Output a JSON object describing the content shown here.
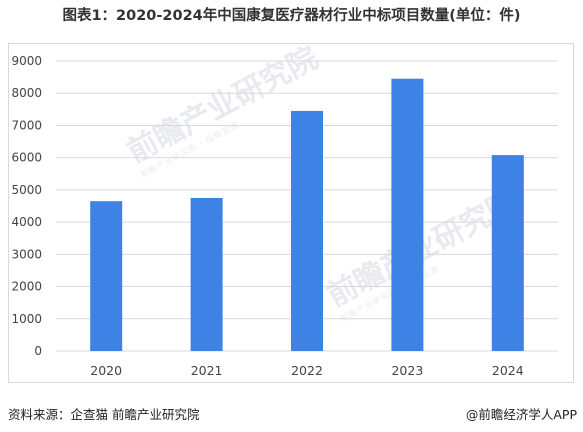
{
  "title": "图表1：2020-2024年中国康复医疗器材行业中标项目数量(单位：件)",
  "footer": {
    "source": "资料来源：企查猫 前瞻产业研究院",
    "brand": "@前瞻经济学人APP"
  },
  "watermark": {
    "text": "前瞻产业研究院",
    "subtext": "前瞻产业研究院 · 战略咨询"
  },
  "colors": {
    "bar": "#3e82e6",
    "grid": "#d9d9d9",
    "tick_text": "#444444"
  },
  "chart_data": {
    "type": "bar",
    "title": "图表1：2020-2024年中国康复医疗器材行业中标项目数量(单位：件)",
    "categories": [
      "2020",
      "2021",
      "2022",
      "2023",
      "2024"
    ],
    "values": [
      4650,
      4750,
      7450,
      8450,
      6080
    ],
    "yticks": [
      0,
      1000,
      2000,
      3000,
      4000,
      5000,
      6000,
      7000,
      8000,
      9000
    ],
    "ylim": [
      0,
      9000
    ],
    "xlabel": "",
    "ylabel": "",
    "grid": true,
    "legend": "none"
  }
}
